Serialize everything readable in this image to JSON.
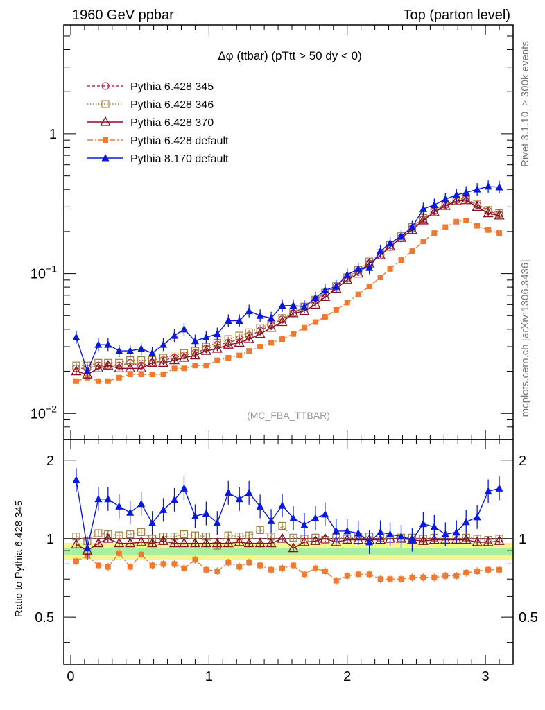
{
  "header": {
    "left": "1960 GeV ppbar",
    "right": "Top (parton level)"
  },
  "side_labels": {
    "rivet": "Rivet 3.1.10, ≥ 300k events",
    "mcplots": "mcplots.cern.ch [arXiv:1306.3436]"
  },
  "chart_data": {
    "type": "line",
    "title": "Δφ (ttbar) (pTtt > 50 dy < 0)",
    "watermark": "(MC_FBA_TTBAR)",
    "ratio_ylabel": "Ratio to Pythia 6.428 345",
    "x_tick_labels": [
      "0",
      "1",
      "2",
      "3"
    ],
    "y_tick_labels": [
      "10^-2",
      "10^-1",
      "1"
    ],
    "ratio_tick_labels": [
      "0.5",
      "1",
      "2"
    ],
    "xlim": [
      -0.05,
      3.2
    ],
    "ylim": [
      0.0065,
      6.0
    ],
    "ylog": true,
    "ratio_ylim": [
      0.33,
      2.4
    ],
    "ratio_log": true,
    "x": [
      0.04,
      0.12,
      0.2,
      0.27,
      0.35,
      0.43,
      0.51,
      0.59,
      0.67,
      0.75,
      0.82,
      0.9,
      0.98,
      1.06,
      1.14,
      1.22,
      1.29,
      1.37,
      1.45,
      1.53,
      1.61,
      1.69,
      1.77,
      1.84,
      1.92,
      2.0,
      2.08,
      2.16,
      2.24,
      2.31,
      2.39,
      2.47,
      2.55,
      2.63,
      2.71,
      2.79,
      2.86,
      2.94,
      3.02,
      3.1
    ],
    "series": [
      {
        "name": "Pythia 6.428 345",
        "color": "#c0304a",
        "marker": "circle",
        "dash": "4,3",
        "values": [
          0.021,
          0.021,
          0.022,
          0.022,
          0.022,
          0.023,
          0.022,
          0.023,
          0.024,
          0.025,
          0.026,
          0.027,
          0.029,
          0.031,
          0.032,
          0.034,
          0.036,
          0.039,
          0.043,
          0.047,
          0.052,
          0.058,
          0.064,
          0.072,
          0.081,
          0.092,
          0.103,
          0.118,
          0.135,
          0.155,
          0.18,
          0.21,
          0.245,
          0.28,
          0.31,
          0.335,
          0.34,
          0.31,
          0.28,
          0.265
        ]
      },
      {
        "name": "Pythia 6.428 346",
        "color": "#a08040",
        "marker": "square",
        "dash": "1.5,2.5",
        "values": [
          0.022,
          0.022,
          0.023,
          0.023,
          0.023,
          0.024,
          0.024,
          0.024,
          0.025,
          0.026,
          0.027,
          0.028,
          0.03,
          0.032,
          0.034,
          0.036,
          0.038,
          0.041,
          0.044,
          0.048,
          0.053,
          0.058,
          0.065,
          0.073,
          0.082,
          0.094,
          0.106,
          0.122,
          0.14,
          0.16,
          0.185,
          0.215,
          0.25,
          0.285,
          0.315,
          0.34,
          0.345,
          0.315,
          0.285,
          0.27
        ]
      },
      {
        "name": "Pythia 6.428 370",
        "color": "#8b1020",
        "marker": "triangle-open",
        "dash": "",
        "values": [
          0.02,
          0.019,
          0.021,
          0.022,
          0.021,
          0.021,
          0.021,
          0.023,
          0.023,
          0.024,
          0.025,
          0.026,
          0.028,
          0.029,
          0.031,
          0.032,
          0.034,
          0.037,
          0.041,
          0.045,
          0.052,
          0.054,
          0.06,
          0.068,
          0.078,
          0.09,
          0.1,
          0.118,
          0.135,
          0.156,
          0.18,
          0.205,
          0.24,
          0.275,
          0.305,
          0.33,
          0.335,
          0.3,
          0.27,
          0.26
        ]
      },
      {
        "name": "Pythia 6.428 default",
        "color": "#f07a30",
        "marker": "square-filled",
        "dash": "8,3,2,3",
        "values": [
          0.017,
          0.018,
          0.017,
          0.017,
          0.018,
          0.019,
          0.019,
          0.019,
          0.019,
          0.021,
          0.021,
          0.022,
          0.022,
          0.024,
          0.025,
          0.026,
          0.028,
          0.03,
          0.032,
          0.034,
          0.037,
          0.041,
          0.045,
          0.049,
          0.055,
          0.062,
          0.071,
          0.081,
          0.094,
          0.108,
          0.125,
          0.145,
          0.17,
          0.195,
          0.215,
          0.235,
          0.24,
          0.22,
          0.205,
          0.195
        ]
      },
      {
        "name": "Pythia 8.170 default",
        "color": "#0a1adc",
        "marker": "triangle",
        "dash": "",
        "values": [
          0.035,
          0.02,
          0.031,
          0.031,
          0.028,
          0.028,
          0.029,
          0.027,
          0.031,
          0.036,
          0.04,
          0.033,
          0.035,
          0.037,
          0.046,
          0.046,
          0.054,
          0.05,
          0.048,
          0.059,
          0.059,
          0.058,
          0.067,
          0.076,
          0.081,
          0.098,
          0.108,
          0.11,
          0.145,
          0.165,
          0.185,
          0.215,
          0.29,
          0.31,
          0.34,
          0.365,
          0.38,
          0.4,
          0.42,
          0.415
        ]
      }
    ],
    "ratio_series": [
      {
        "name": "Pythia 6.428 345",
        "values": [
          1.0,
          1.0,
          1.0,
          1.0,
          1.0,
          1.0,
          1.0,
          1.0,
          1.0,
          1.0,
          1.0,
          1.0,
          1.0,
          1.0,
          1.0,
          1.0,
          1.0,
          1.0,
          1.0,
          1.0,
          1.0,
          1.0,
          1.0,
          1.0,
          1.0,
          1.0,
          1.0,
          1.0,
          1.0,
          1.0,
          1.0,
          1.0,
          1.0,
          1.0,
          1.0,
          1.0,
          1.0,
          1.0,
          1.0,
          1.0
        ]
      },
      {
        "name": "Pythia 6.428 346",
        "values": [
          1.02,
          0.98,
          1.05,
          1.04,
          1.03,
          1.04,
          1.06,
          1.0,
          1.02,
          1.02,
          1.04,
          1.03,
          1.02,
          0.94,
          1.03,
          1.02,
          1.03,
          1.08,
          1.02,
          1.12,
          1.01,
          1.0,
          1.01,
          0.99,
          1.01,
          1.0,
          1.02,
          1.02,
          1.01,
          1.0,
          1.01,
          1.01,
          1.0,
          1.01,
          1.0,
          1.0,
          1.01,
          1.0,
          0.99,
          1.0
        ]
      },
      {
        "name": "Pythia 6.428 370",
        "values": [
          0.95,
          0.9,
          0.96,
          1.0,
          0.96,
          0.96,
          0.97,
          0.96,
          0.98,
          0.96,
          0.96,
          0.96,
          0.96,
          0.96,
          0.96,
          0.97,
          0.96,
          0.96,
          0.96,
          1.0,
          0.92,
          0.97,
          0.98,
          1.0,
          0.97,
          0.99,
          0.99,
          0.99,
          0.99,
          1.0,
          1.0,
          0.99,
          0.98,
          0.99,
          0.99,
          0.99,
          0.99,
          0.97,
          0.97,
          0.98
        ]
      },
      {
        "name": "Pythia 6.428 default",
        "values": [
          0.82,
          0.86,
          0.79,
          0.78,
          0.88,
          0.78,
          0.87,
          0.79,
          0.8,
          0.8,
          0.77,
          0.83,
          0.76,
          0.75,
          0.81,
          0.78,
          0.81,
          0.79,
          0.76,
          0.77,
          0.79,
          0.73,
          0.77,
          0.75,
          0.69,
          0.72,
          0.73,
          0.73,
          0.7,
          0.7,
          0.7,
          0.71,
          0.71,
          0.71,
          0.72,
          0.72,
          0.74,
          0.75,
          0.76,
          0.76
        ]
      },
      {
        "name": "Pythia 8.170 default",
        "values": [
          1.68,
          0.92,
          1.42,
          1.42,
          1.33,
          1.26,
          1.36,
          1.15,
          1.29,
          1.41,
          1.56,
          1.22,
          1.25,
          1.15,
          1.5,
          1.42,
          1.5,
          1.33,
          1.17,
          1.34,
          1.2,
          1.13,
          1.2,
          1.24,
          1.07,
          1.07,
          1.05,
          0.97,
          1.06,
          1.04,
          1.02,
          0.99,
          1.14,
          1.11,
          1.04,
          1.06,
          1.16,
          1.21,
          1.52,
          1.56
        ]
      }
    ]
  }
}
